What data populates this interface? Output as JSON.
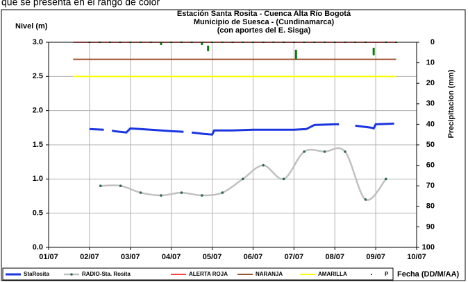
{
  "header_text": "que se presenta en el rango de color",
  "chart_data": {
    "type": "line",
    "title": [
      "Estación Santa Rosita - Cuenca Alta Río Bogotá",
      "Municipio de Suesca - (Cundinamarca)",
      "(con aportes del  E. Sisga)"
    ],
    "y_label": "Nivel (m)",
    "y2_label": "Precipitacion (mm)",
    "x_label": "Fecha (DD/M/AA)",
    "xlim": [
      1,
      10
    ],
    "xticks": [
      {
        "value": 1,
        "label": "01/07"
      },
      {
        "value": 2,
        "label": "02/07"
      },
      {
        "value": 3,
        "label": "03/07"
      },
      {
        "value": 4,
        "label": "04/07"
      },
      {
        "value": 5,
        "label": "05/07"
      },
      {
        "value": 6,
        "label": "06/07"
      },
      {
        "value": 7,
        "label": "07/07"
      },
      {
        "value": 8,
        "label": "08/07"
      },
      {
        "value": 9,
        "label": "09/07"
      },
      {
        "value": 10,
        "label": "10/07"
      }
    ],
    "ylim": [
      0,
      3
    ],
    "yticks": [
      {
        "value": 0,
        "label": "0.0"
      },
      0.5,
      {
        "value": 1,
        "label": "1.0"
      },
      1.5,
      {
        "value": 2,
        "label": "2.0"
      },
      2.5,
      {
        "value": 3,
        "label": "3.0"
      }
    ],
    "y2lim": [
      100,
      0
    ],
    "y2ticks": [
      0,
      10,
      20,
      30,
      40,
      50,
      60,
      70,
      80,
      90,
      100
    ],
    "grid": true,
    "legend": "bottom",
    "series": [
      {
        "name": "StaRosita",
        "color": "#1a35e0",
        "style": "line",
        "width": 3,
        "x": [
          2.0,
          2.35,
          2.45,
          2.55,
          2.6,
          2.9,
          3.0,
          3.5,
          4.0,
          4.3,
          4.35,
          4.5,
          4.8,
          5.0,
          5.05,
          5.5,
          6.0,
          6.5,
          7.0,
          7.3,
          7.5,
          8.0,
          8.1,
          8.2,
          8.5,
          8.9,
          8.95,
          9.0,
          9.45
        ],
        "values": [
          1.73,
          1.72,
          null,
          1.71,
          1.7,
          1.68,
          1.74,
          1.72,
          1.7,
          1.69,
          null,
          1.68,
          1.66,
          1.65,
          1.71,
          1.71,
          1.72,
          1.72,
          1.72,
          1.73,
          1.79,
          1.8,
          1.8,
          null,
          1.78,
          1.75,
          1.74,
          1.8,
          1.81
        ]
      },
      {
        "name": "RADIO-Sta. Rosita",
        "color": "#c0c0c0",
        "style": "smooth",
        "marker_color": "#2e6b4a",
        "width": 2.5,
        "x": [
          2.27,
          2.76,
          3.25,
          3.75,
          4.25,
          4.75,
          5.25,
          5.75,
          6.25,
          6.75,
          7.25,
          7.75,
          8.25,
          8.75,
          9.25
        ],
        "values": [
          0.9,
          0.9,
          0.8,
          0.76,
          0.8,
          0.76,
          0.8,
          1.0,
          1.2,
          1.0,
          1.4,
          1.4,
          1.4,
          0.7,
          1.0
        ]
      },
      {
        "name": "ALERTA ROJA",
        "color": "#ff0000",
        "style": "line",
        "width": 1.5,
        "x": [
          1.6,
          9.5
        ],
        "values": [
          3,
          3
        ]
      },
      {
        "name": "NARANJA",
        "color": "#a0522d",
        "style": "line",
        "width": 2,
        "x": [
          1.6,
          9.5
        ],
        "values": [
          2.75,
          2.75
        ]
      },
      {
        "name": "AMARILLA",
        "color": "#ffff00",
        "style": "line",
        "width": 2,
        "x": [
          1.6,
          9.5
        ],
        "values": [
          2.5,
          2.5
        ]
      },
      {
        "name": "P",
        "color": "#0a7a0a",
        "style": "dots",
        "axis": "y2",
        "x": [
          2.0,
          2.25,
          2.5,
          2.75,
          3.0,
          3.25,
          3.5,
          3.75,
          4.0,
          4.25,
          4.5,
          4.75,
          4.9,
          5.0,
          5.25,
          5.5,
          5.75,
          6.0,
          6.25,
          6.5,
          6.75,
          7.0,
          7.05,
          7.25,
          7.5,
          7.75,
          8.0,
          8.25,
          8.5,
          8.75,
          8.95,
          9.25,
          9.5
        ],
        "values": [
          0,
          0,
          0,
          0,
          0,
          0,
          0,
          0.5,
          0,
          0,
          0,
          0.5,
          2,
          0,
          0,
          0,
          0,
          0,
          0,
          0,
          0,
          0,
          4,
          0,
          0,
          0,
          0,
          0,
          0,
          0,
          3,
          0,
          0
        ]
      }
    ]
  }
}
